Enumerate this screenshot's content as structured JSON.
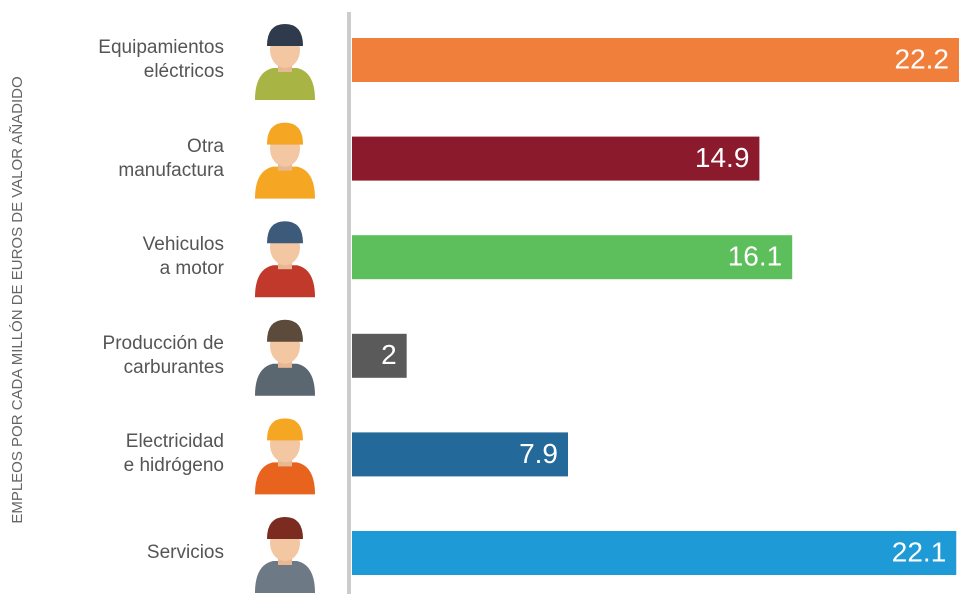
{
  "chart_data": {
    "type": "bar",
    "orientation": "horizontal",
    "y_axis_label": "EMPLEOS POR CADA MILLÓN DE EUROS DE VALOR AÑADIDO",
    "categories": [
      "Equipamientos\neléctricos",
      "Otra\nmanufactura",
      "Vehiculos\na motor",
      "Producción de\ncarburantes",
      "Electricidad\ne hidrógeno",
      "Servicios"
    ],
    "values": [
      22.2,
      14.9,
      16.1,
      2,
      7.9,
      22.1
    ],
    "colors": [
      "#f07f3c",
      "#8b1a2d",
      "#5cbf5b",
      "#5a5a5a",
      "#236a9b",
      "#1e9ad6"
    ],
    "xlim": [
      0,
      22.2
    ]
  }
}
